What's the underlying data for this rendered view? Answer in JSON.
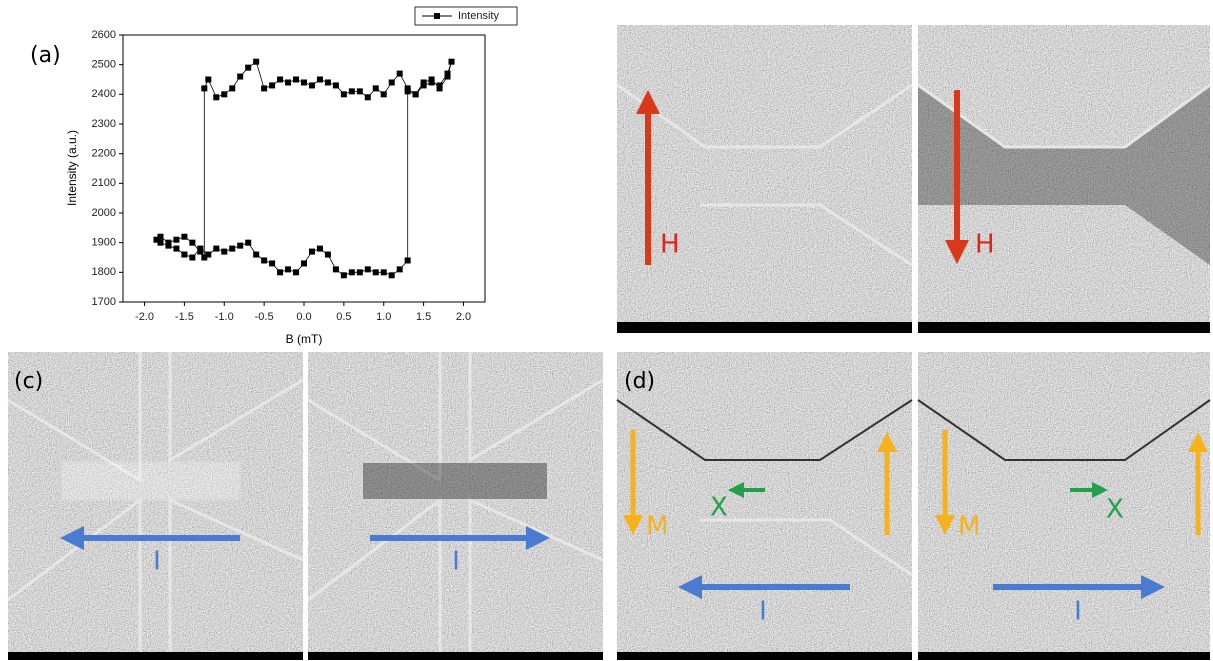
{
  "chart_data": {
    "type": "line",
    "xlabel": "B (mT)",
    "ylabel": "Intensity (a.u.)",
    "x": [
      -1.85,
      -1.8,
      -1.7,
      -1.6,
      -1.5,
      -1.4,
      -1.3,
      -1.2,
      -1.1,
      -1.0,
      -0.9,
      -0.8,
      -0.7,
      -0.6,
      -0.5,
      -0.4,
      -0.3,
      -0.2,
      -0.1,
      0.0,
      0.1,
      0.2,
      0.3,
      0.4,
      0.5,
      0.6,
      0.7,
      0.8,
      0.9,
      1.0,
      1.1,
      1.2,
      1.3,
      1.3,
      1.4,
      1.5,
      1.6,
      1.7,
      1.8,
      1.85,
      1.8,
      1.7,
      1.6,
      1.5,
      1.4,
      1.3,
      1.2,
      1.1,
      1.0,
      0.9,
      0.8,
      0.7,
      0.6,
      0.5,
      0.4,
      0.3,
      0.2,
      0.1,
      0.0,
      -0.1,
      -0.2,
      -0.3,
      -0.4,
      -0.5,
      -0.6,
      -0.7,
      -0.8,
      -0.9,
      -1.0,
      -1.1,
      -1.2,
      -1.25,
      -1.25,
      -1.3,
      -1.4,
      -1.5,
      -1.6,
      -1.7,
      -1.8
    ],
    "series": [
      {
        "name": "Intensity",
        "color": "#000000",
        "values": [
          1910,
          1900,
          1890,
          1880,
          1860,
          1850,
          1880,
          1860,
          1880,
          1870,
          1880,
          1890,
          1900,
          1860,
          1840,
          1830,
          1800,
          1810,
          1800,
          1830,
          1870,
          1880,
          1860,
          1810,
          1790,
          1800,
          1800,
          1810,
          1800,
          1800,
          1790,
          1810,
          1840,
          2410,
          2400,
          2430,
          2440,
          2430,
          2470,
          2510,
          2460,
          2420,
          2450,
          2440,
          2400,
          2420,
          2470,
          2440,
          2400,
          2420,
          2390,
          2410,
          2410,
          2400,
          2430,
          2440,
          2450,
          2430,
          2440,
          2450,
          2440,
          2450,
          2430,
          2420,
          2510,
          2490,
          2460,
          2420,
          2400,
          2390,
          2450,
          2420,
          1850,
          1870,
          1900,
          1920,
          1910,
          1900,
          1920
        ]
      }
    ],
    "xlim": [
      -2.27,
      2.27
    ],
    "xticks": [
      {
        "value": -2.0,
        "label": "-2.0"
      },
      -1.5,
      {
        "value": -1.0,
        "label": "-1.0"
      },
      -0.5,
      {
        "value": 0.0,
        "label": "0.0"
      },
      0.5,
      {
        "value": 1.0,
        "label": "1.0"
      },
      1.5,
      {
        "value": 2.0,
        "label": "2.0"
      }
    ],
    "ylim": [
      1700,
      2600
    ],
    "yticks": [
      1700,
      1800,
      1900,
      2000,
      2100,
      2200,
      2300,
      2400,
      2500,
      2600
    ],
    "legend": "top-right"
  },
  "panels": {
    "a": "(a)",
    "c": "(c)",
    "d": "(d)"
  },
  "image_labels": {
    "field": "H",
    "magnetization": "M",
    "current": "I",
    "position": "X"
  }
}
